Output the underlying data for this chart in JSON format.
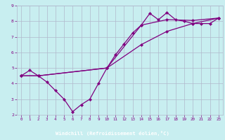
{
  "xlabel": "Windchill (Refroidissement éolien,°C)",
  "bg_color": "#c8eef0",
  "plot_bg_color": "#c8eef0",
  "xlabel_bg": "#800080",
  "xlabel_fg": "#ffffff",
  "line_color": "#800080",
  "grid_color": "#b0b8cc",
  "xlim": [
    -0.5,
    23.5
  ],
  "ylim": [
    2,
    9
  ],
  "xticks": [
    0,
    1,
    2,
    3,
    4,
    5,
    6,
    7,
    8,
    9,
    10,
    11,
    12,
    13,
    14,
    15,
    16,
    17,
    18,
    19,
    20,
    21,
    22,
    23
  ],
  "yticks": [
    2,
    3,
    4,
    5,
    6,
    7,
    8,
    9
  ],
  "lines": [
    {
      "x": [
        0,
        1,
        2,
        3,
        4,
        5,
        6,
        7,
        8,
        9,
        10,
        11,
        12,
        13,
        14,
        15,
        16,
        17,
        18,
        19,
        20,
        21,
        22,
        23
      ],
      "y": [
        4.5,
        4.85,
        4.5,
        4.1,
        3.55,
        3.0,
        2.2,
        2.65,
        3.0,
        4.0,
        5.0,
        5.85,
        6.55,
        7.25,
        7.75,
        8.5,
        8.1,
        8.55,
        8.1,
        8.0,
        7.85,
        7.85,
        7.85,
        8.2
      ]
    },
    {
      "x": [
        0,
        2,
        10,
        14,
        17,
        20,
        23
      ],
      "y": [
        4.5,
        4.5,
        5.0,
        7.75,
        8.1,
        8.05,
        8.2
      ]
    },
    {
      "x": [
        0,
        2,
        10,
        14,
        17,
        20,
        23
      ],
      "y": [
        4.5,
        4.5,
        5.0,
        6.5,
        7.35,
        7.85,
        8.2
      ]
    }
  ]
}
